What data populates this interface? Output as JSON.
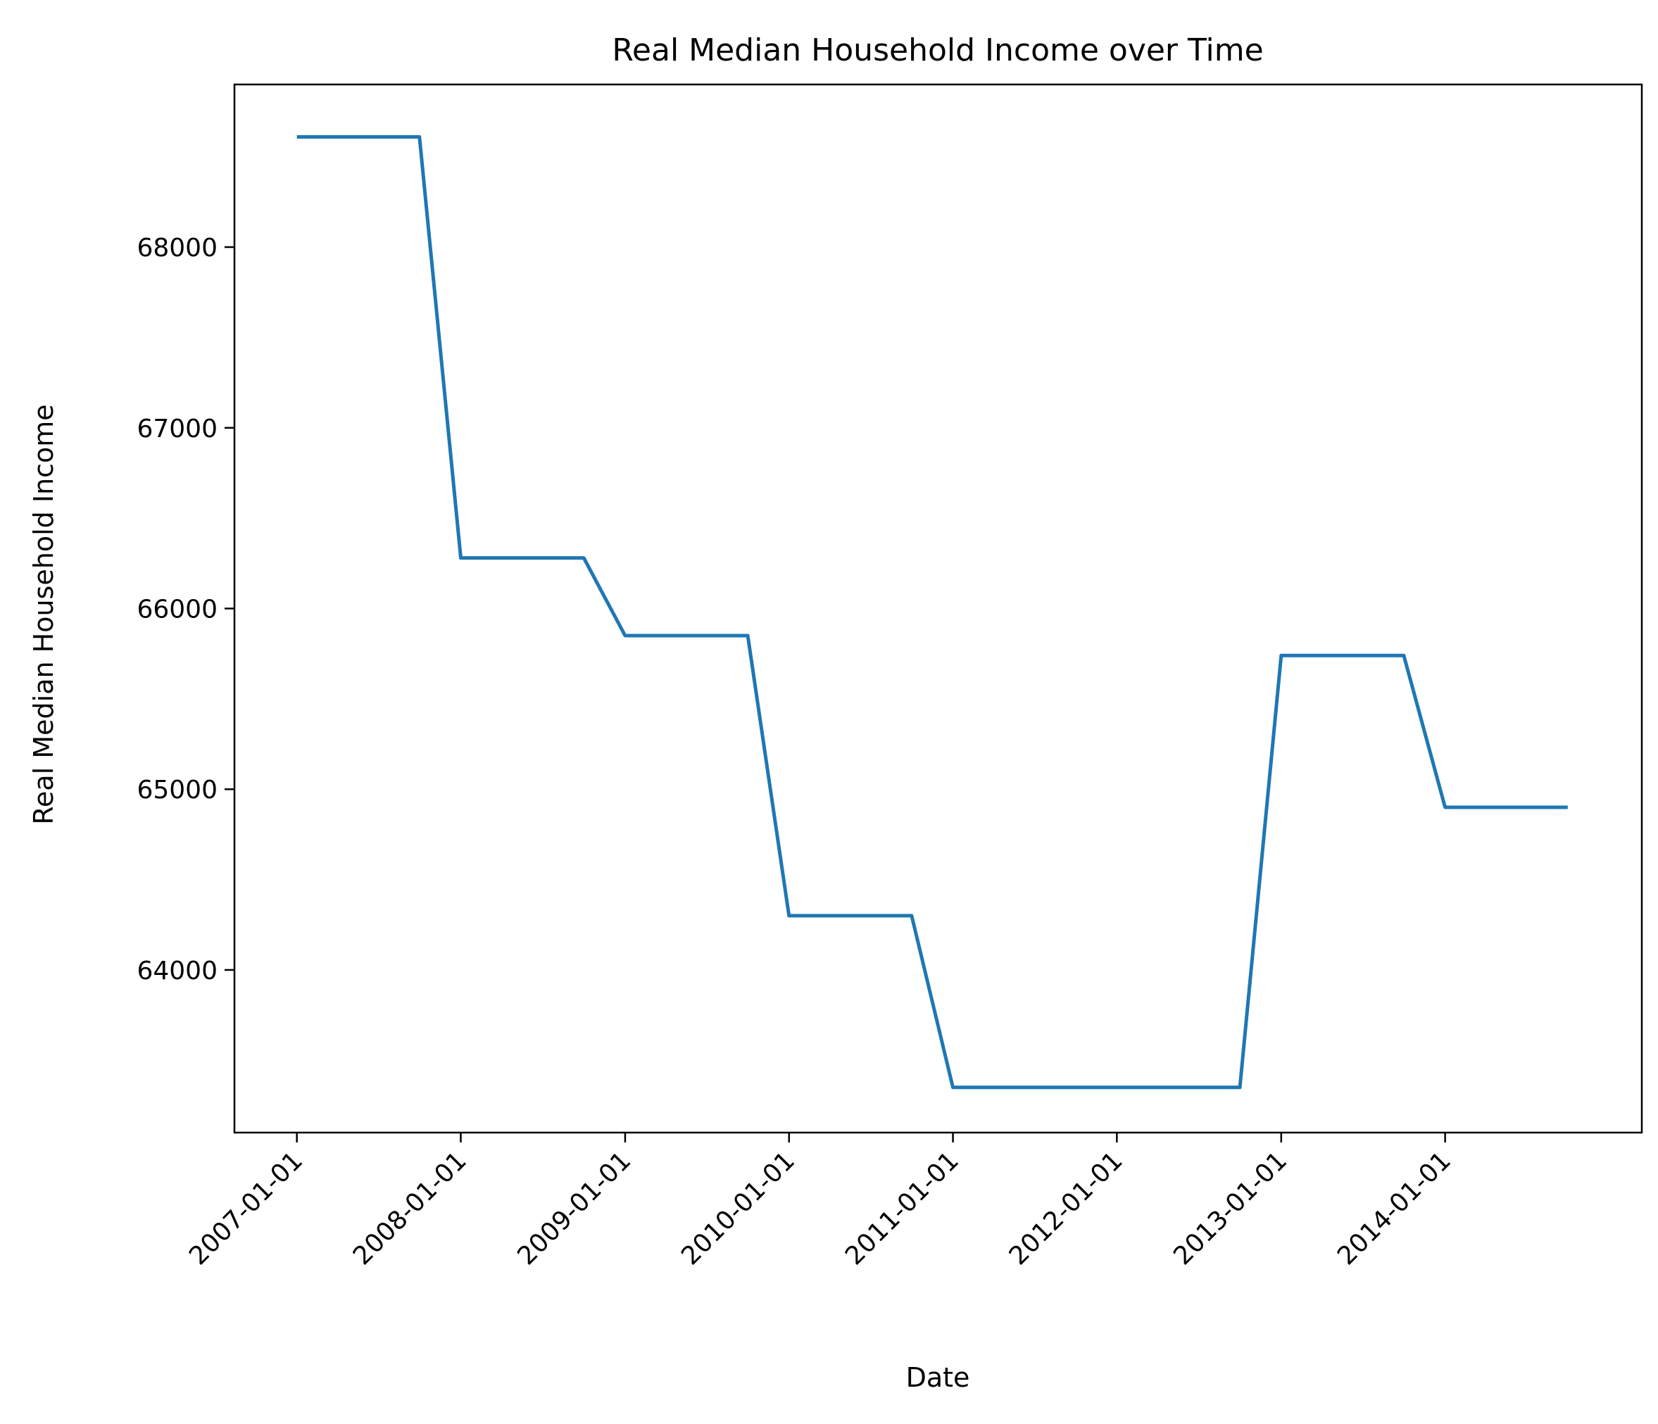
{
  "chart_data": {
    "type": "line",
    "title": "Real Median Household Income over Time",
    "xlabel": "Date",
    "ylabel": "Real Median Household Income",
    "x_ticks": [
      "2007-01-01",
      "2008-01-01",
      "2009-01-01",
      "2010-01-01",
      "2011-01-01",
      "2012-01-01",
      "2013-01-01",
      "2014-01-01"
    ],
    "y_ticks": [
      64000,
      65000,
      66000,
      67000,
      68000
    ],
    "xlim": [
      "2006-08-15",
      "2015-03-15"
    ],
    "ylim": [
      63100,
      68900
    ],
    "grid": false,
    "color": "#1f77b4",
    "series": [
      {
        "x": [
          "2007-01-01",
          "2007-04-01",
          "2007-07-01",
          "2007-10-01",
          "2008-01-01",
          "2008-04-01",
          "2008-07-01",
          "2008-10-01",
          "2009-01-01",
          "2009-04-01",
          "2009-07-01",
          "2009-10-01",
          "2010-01-01",
          "2010-04-01",
          "2010-07-01",
          "2010-10-01",
          "2011-01-01",
          "2011-04-01",
          "2011-07-01",
          "2011-10-01",
          "2012-01-01",
          "2012-04-01",
          "2012-07-01",
          "2012-10-01",
          "2013-01-01",
          "2013-04-01",
          "2013-07-01",
          "2013-10-01",
          "2014-01-01",
          "2014-04-01",
          "2014-07-01",
          "2014-10-01"
        ],
        "y": [
          68610,
          68610,
          68610,
          68610,
          66280,
          66280,
          66280,
          66280,
          65850,
          65850,
          65850,
          65850,
          64300,
          64300,
          64300,
          64300,
          63350,
          63350,
          63350,
          63350,
          63350,
          63350,
          63350,
          63350,
          65740,
          65740,
          65740,
          65740,
          64900,
          64900,
          64900,
          64900
        ]
      }
    ]
  }
}
